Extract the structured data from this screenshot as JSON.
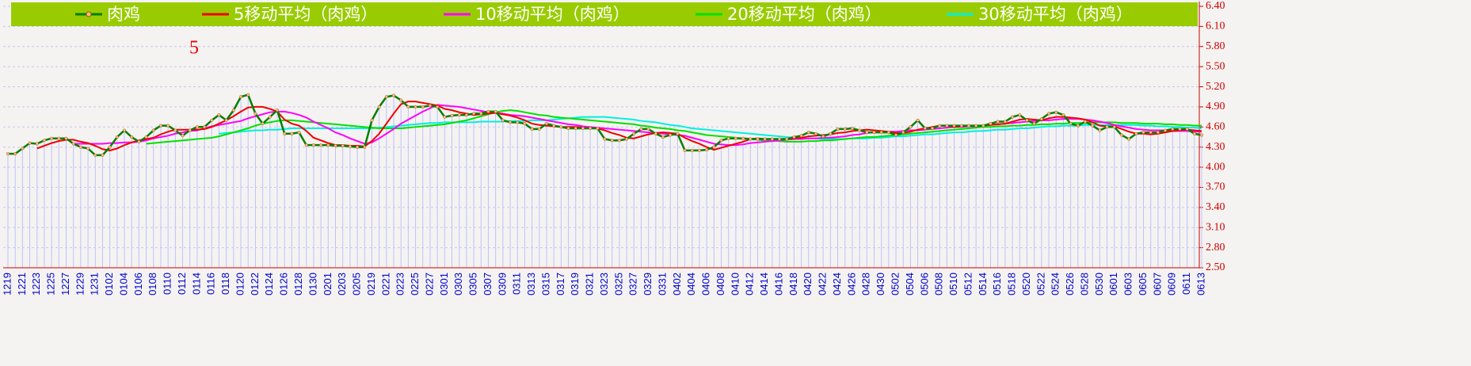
{
  "chart_data": {
    "type": "line",
    "annotation": "5",
    "categories": [
      "1219",
      null,
      "1221",
      null,
      "1223",
      null,
      "1225",
      null,
      "1227",
      null,
      "1229",
      null,
      "1231",
      null,
      "0102",
      null,
      "0104",
      null,
      "0106",
      null,
      "0108",
      null,
      "0110",
      null,
      "0112",
      null,
      "0114",
      null,
      "0116",
      null,
      "0118",
      null,
      "0120",
      null,
      "0122",
      null,
      "0124",
      null,
      "0126",
      null,
      "0128",
      null,
      "0130",
      null,
      "0201",
      null,
      "0203",
      null,
      "0205",
      null,
      "0219",
      null,
      "0221",
      null,
      "0223",
      null,
      "0225",
      null,
      "0227",
      null,
      "0301",
      null,
      "0303",
      null,
      "0305",
      null,
      "0307",
      null,
      "0309",
      null,
      "0311",
      null,
      "0313",
      null,
      "0315",
      null,
      "0317",
      null,
      "0319",
      null,
      "0321",
      null,
      "0323",
      null,
      "0325",
      null,
      "0327",
      null,
      "0329",
      null,
      "0331",
      null,
      "0402",
      null,
      "0404",
      null,
      "0406",
      null,
      "0408",
      null,
      "0410",
      null,
      "0412",
      null,
      "0414",
      null,
      "0416",
      null,
      "0418",
      null,
      "0420",
      null,
      "0422",
      null,
      "0424",
      null,
      "0426",
      null,
      "0428",
      null,
      "0430",
      null,
      "0502",
      null,
      "0504",
      null,
      "0506",
      null,
      "0508",
      null,
      "0510",
      null,
      "0512",
      null,
      "0514",
      null,
      "0516",
      null,
      "0518",
      null,
      "0520",
      null,
      "0522",
      null,
      "0524",
      null,
      "0526",
      null,
      "0528",
      null,
      "0530",
      null,
      "0601",
      null,
      "0603",
      null,
      "0605",
      null,
      "0607",
      null,
      "0609",
      null,
      "0611",
      null,
      "0613"
    ],
    "series": [
      {
        "name": "肉鸡",
        "color": "#008000",
        "marker": "#ffc080",
        "values": [
          4.2,
          4.2,
          4.28,
          4.36,
          4.35,
          4.4,
          4.43,
          4.43,
          4.43,
          4.35,
          4.3,
          4.28,
          4.18,
          4.18,
          4.3,
          4.45,
          4.55,
          4.45,
          4.38,
          4.45,
          4.55,
          4.62,
          4.62,
          4.55,
          4.47,
          4.55,
          4.6,
          4.6,
          4.7,
          4.78,
          4.7,
          4.85,
          5.05,
          5.08,
          4.8,
          4.65,
          4.75,
          4.85,
          4.5,
          4.5,
          4.52,
          4.33,
          4.33,
          4.33,
          4.33,
          4.32,
          4.32,
          4.31,
          4.3,
          4.3,
          4.7,
          4.9,
          5.05,
          5.07,
          5.0,
          4.9,
          4.9,
          4.9,
          4.92,
          4.9,
          4.75,
          4.77,
          4.78,
          4.78,
          4.8,
          4.8,
          4.83,
          4.83,
          4.7,
          4.67,
          4.67,
          4.65,
          4.57,
          4.57,
          4.65,
          4.62,
          4.6,
          4.58,
          4.58,
          4.58,
          4.58,
          4.58,
          4.42,
          4.4,
          4.4,
          4.42,
          4.5,
          4.57,
          4.57,
          4.5,
          4.45,
          4.48,
          4.5,
          4.25,
          4.25,
          4.25,
          4.26,
          4.3,
          4.4,
          4.43,
          4.43,
          4.43,
          4.42,
          4.42,
          4.42,
          4.42,
          4.42,
          4.42,
          4.45,
          4.47,
          4.52,
          4.5,
          4.46,
          4.5,
          4.57,
          4.57,
          4.58,
          4.55,
          4.52,
          4.52,
          4.52,
          4.52,
          4.48,
          4.52,
          4.6,
          4.7,
          4.58,
          4.58,
          4.62,
          4.62,
          4.62,
          4.62,
          4.62,
          4.62,
          4.62,
          4.65,
          4.68,
          4.68,
          4.75,
          4.78,
          4.7,
          4.65,
          4.72,
          4.8,
          4.82,
          4.78,
          4.65,
          4.62,
          4.68,
          4.62,
          4.55,
          4.6,
          4.6,
          4.48,
          4.42,
          4.5,
          4.52,
          4.52,
          4.52,
          4.55,
          4.57,
          4.57,
          4.57,
          4.5,
          4.48
        ]
      },
      {
        "name": "5移动平均（肉鸡）",
        "color": "#ee0000",
        "values": [
          null,
          null,
          null,
          null,
          4.28,
          4.32,
          4.36,
          4.39,
          4.41,
          4.41,
          4.38,
          4.36,
          4.32,
          4.27,
          4.25,
          4.28,
          4.33,
          4.37,
          4.4,
          4.42,
          4.44,
          4.49,
          4.53,
          4.56,
          4.56,
          4.56,
          4.56,
          4.57,
          4.6,
          4.65,
          4.7,
          4.76,
          4.83,
          4.89,
          4.9,
          4.9,
          4.87,
          4.83,
          4.71,
          4.65,
          4.62,
          4.54,
          4.44,
          4.4,
          4.36,
          4.33,
          4.33,
          4.32,
          4.32,
          4.31,
          4.39,
          4.5,
          4.65,
          4.8,
          4.94,
          4.98,
          4.98,
          4.96,
          4.94,
          4.92,
          4.87,
          4.85,
          4.82,
          4.8,
          4.78,
          4.79,
          4.8,
          4.81,
          4.79,
          4.77,
          4.74,
          4.7,
          4.65,
          4.63,
          4.62,
          4.61,
          4.6,
          4.6,
          4.6,
          4.59,
          4.58,
          4.58,
          4.55,
          4.51,
          4.48,
          4.44,
          4.43,
          4.46,
          4.49,
          4.51,
          4.52,
          4.51,
          4.5,
          4.44,
          4.39,
          4.35,
          4.3,
          4.26,
          4.29,
          4.32,
          4.35,
          4.38,
          4.42,
          4.43,
          4.42,
          4.42,
          4.42,
          4.42,
          4.43,
          4.44,
          4.46,
          4.47,
          4.48,
          4.49,
          4.51,
          4.52,
          4.54,
          4.55,
          4.56,
          4.55,
          4.54,
          4.53,
          4.51,
          4.51,
          4.53,
          4.56,
          4.58,
          4.6,
          4.62,
          4.62,
          4.6,
          4.61,
          4.62,
          4.62,
          4.62,
          4.63,
          4.64,
          4.65,
          4.68,
          4.71,
          4.72,
          4.71,
          4.7,
          4.73,
          4.75,
          4.75,
          4.74,
          4.73,
          4.71,
          4.67,
          4.62,
          4.61,
          4.61,
          4.57,
          4.53,
          4.5,
          4.5,
          4.49,
          4.5,
          4.52,
          4.54,
          4.55,
          4.56,
          4.55,
          4.54
        ]
      },
      {
        "name": "10移动平均（肉鸡）",
        "color": "#ff00ff",
        "values": [
          null,
          null,
          null,
          null,
          null,
          null,
          null,
          null,
          null,
          4.35,
          4.35,
          4.35,
          4.35,
          4.35,
          4.36,
          4.36,
          4.37,
          4.37,
          4.38,
          4.4,
          4.43,
          4.45,
          4.47,
          4.5,
          4.52,
          4.54,
          4.55,
          4.58,
          4.61,
          4.63,
          4.65,
          4.67,
          4.69,
          4.73,
          4.76,
          4.79,
          4.82,
          4.83,
          4.83,
          4.81,
          4.78,
          4.74,
          4.68,
          4.63,
          4.58,
          4.52,
          4.48,
          4.43,
          4.39,
          4.35,
          4.37,
          4.43,
          4.5,
          4.57,
          4.65,
          4.71,
          4.77,
          4.83,
          4.88,
          4.93,
          4.92,
          4.91,
          4.9,
          4.88,
          4.86,
          4.84,
          4.82,
          4.81,
          4.8,
          4.78,
          4.77,
          4.76,
          4.74,
          4.72,
          4.7,
          4.68,
          4.66,
          4.64,
          4.63,
          4.61,
          4.6,
          4.59,
          4.58,
          4.57,
          4.56,
          4.55,
          4.54,
          4.53,
          4.52,
          4.51,
          4.5,
          4.49,
          4.48,
          4.47,
          4.44,
          4.41,
          4.38,
          4.35,
          4.34,
          4.33,
          4.33,
          4.34,
          4.36,
          4.37,
          4.38,
          4.39,
          4.4,
          4.41,
          4.42,
          4.42,
          4.43,
          4.43,
          4.44,
          4.44,
          4.45,
          4.46,
          4.48,
          4.49,
          4.51,
          4.52,
          4.52,
          4.53,
          4.53,
          4.54,
          4.55,
          4.55,
          4.56,
          4.57,
          4.58,
          4.59,
          4.6,
          4.6,
          4.61,
          4.61,
          4.62,
          4.63,
          4.64,
          4.65,
          4.66,
          4.67,
          4.68,
          4.69,
          4.7,
          4.7,
          4.71,
          4.72,
          4.72,
          4.72,
          4.71,
          4.7,
          4.68,
          4.66,
          4.63,
          4.61,
          4.59,
          4.57,
          4.56,
          4.55,
          4.55,
          4.55,
          4.54,
          4.54,
          4.54,
          4.53,
          4.53
        ]
      },
      {
        "name": "20移动平均（肉鸡）",
        "color": "#00e000",
        "values": [
          null,
          null,
          null,
          null,
          null,
          null,
          null,
          null,
          null,
          null,
          null,
          null,
          null,
          null,
          null,
          null,
          null,
          null,
          null,
          4.35,
          4.36,
          4.37,
          4.38,
          4.39,
          4.4,
          4.41,
          4.42,
          4.43,
          4.44,
          4.46,
          4.49,
          4.52,
          4.55,
          4.58,
          4.62,
          4.65,
          4.67,
          4.69,
          4.7,
          4.7,
          4.69,
          4.68,
          4.67,
          4.66,
          4.65,
          4.64,
          4.63,
          4.62,
          4.61,
          4.6,
          4.59,
          4.58,
          4.58,
          4.58,
          4.58,
          4.59,
          4.6,
          4.61,
          4.62,
          4.63,
          4.64,
          4.66,
          4.68,
          4.7,
          4.73,
          4.76,
          4.79,
          4.82,
          4.84,
          4.85,
          4.84,
          4.82,
          4.8,
          4.78,
          4.77,
          4.75,
          4.74,
          4.73,
          4.72,
          4.71,
          4.7,
          4.69,
          4.68,
          4.67,
          4.66,
          4.65,
          4.64,
          4.62,
          4.61,
          4.59,
          4.58,
          4.57,
          4.55,
          4.54,
          4.52,
          4.5,
          4.48,
          4.47,
          4.46,
          4.45,
          4.44,
          4.43,
          4.42,
          4.41,
          4.4,
          4.4,
          4.39,
          4.38,
          4.38,
          4.38,
          4.39,
          4.39,
          4.4,
          4.4,
          4.41,
          4.42,
          4.43,
          4.44,
          4.45,
          4.45,
          4.46,
          4.47,
          4.48,
          4.49,
          4.5,
          4.51,
          4.52,
          4.53,
          4.54,
          4.55,
          4.56,
          4.57,
          4.58,
          4.59,
          4.6,
          4.6,
          4.61,
          4.61,
          4.62,
          4.62,
          4.63,
          4.63,
          4.64,
          4.64,
          4.65,
          4.65,
          4.66,
          4.66,
          4.66,
          4.67,
          4.67,
          4.67,
          4.67,
          4.66,
          4.66,
          4.66,
          4.65,
          4.65,
          4.65,
          4.64,
          4.64,
          4.63,
          4.63,
          4.62,
          4.62
        ]
      },
      {
        "name": "30移动平均（肉鸡）",
        "color": "#00f0e0",
        "values": [
          null,
          null,
          null,
          null,
          null,
          null,
          null,
          null,
          null,
          null,
          null,
          null,
          null,
          null,
          null,
          null,
          null,
          null,
          null,
          null,
          null,
          null,
          null,
          null,
          null,
          null,
          null,
          null,
          null,
          4.5,
          4.51,
          4.52,
          4.53,
          4.54,
          4.55,
          4.55,
          4.56,
          4.56,
          4.57,
          4.58,
          4.58,
          4.58,
          4.58,
          4.58,
          4.58,
          4.58,
          4.58,
          4.58,
          4.58,
          4.58,
          4.58,
          4.59,
          4.6,
          4.61,
          4.62,
          4.63,
          4.64,
          4.65,
          4.66,
          4.66,
          4.67,
          4.67,
          4.67,
          4.67,
          4.67,
          4.68,
          4.68,
          4.68,
          4.68,
          4.69,
          4.69,
          4.69,
          4.7,
          4.7,
          4.7,
          4.71,
          4.72,
          4.73,
          4.74,
          4.75,
          4.75,
          4.75,
          4.75,
          4.74,
          4.73,
          4.72,
          4.71,
          4.69,
          4.68,
          4.67,
          4.65,
          4.63,
          4.62,
          4.6,
          4.58,
          4.57,
          4.56,
          4.55,
          4.54,
          4.53,
          4.52,
          4.51,
          4.5,
          4.49,
          4.48,
          4.47,
          4.46,
          4.45,
          4.44,
          4.43,
          4.43,
          4.43,
          4.42,
          4.42,
          4.42,
          4.42,
          4.43,
          4.43,
          4.43,
          4.44,
          4.44,
          4.45,
          4.46,
          4.46,
          4.47,
          4.48,
          4.49,
          4.49,
          4.5,
          4.51,
          4.52,
          4.52,
          4.53,
          4.54,
          4.54,
          4.55,
          4.56,
          4.56,
          4.57,
          4.58,
          4.58,
          4.59,
          4.6,
          4.61,
          4.61,
          4.62,
          4.62,
          4.62,
          4.63,
          4.63,
          4.63,
          4.63,
          4.63,
          4.63,
          4.63,
          4.63,
          4.62,
          4.62,
          4.61,
          4.61,
          4.6,
          4.6,
          4.59,
          4.59,
          4.58
        ]
      }
    ],
    "ylim": [
      2.5,
      6.4
    ],
    "yticks": [
      {
        "value": 2.5,
        "label": "2.50"
      },
      {
        "value": 2.8,
        "label": "2.80"
      },
      {
        "value": 3.1,
        "label": "3.10"
      },
      {
        "value": 3.4,
        "label": "3.40"
      },
      {
        "value": 3.7,
        "label": "3.70"
      },
      {
        "value": 4.0,
        "label": "4.00"
      },
      {
        "value": 4.3,
        "label": "4.30"
      },
      {
        "value": 4.6,
        "label": "4.60"
      },
      {
        "value": 4.9,
        "label": "4.90"
      },
      {
        "value": 5.2,
        "label": "5.20"
      },
      {
        "value": 5.5,
        "label": "5.50"
      },
      {
        "value": 5.8,
        "label": "5.80"
      },
      {
        "value": 6.1,
        "label": "6.10"
      },
      {
        "value": 6.4,
        "label": "6.40"
      }
    ],
    "grid": true,
    "legend": "top",
    "legend_color": "#99cc00",
    "axis_color": "#cc0000"
  }
}
